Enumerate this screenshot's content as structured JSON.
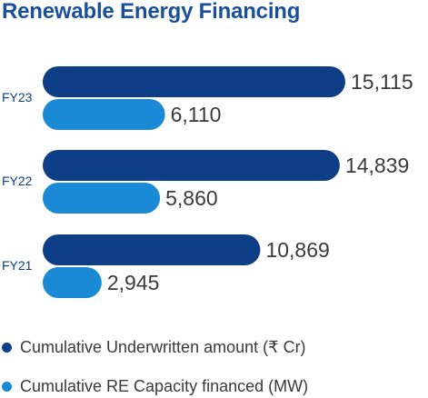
{
  "title": "Renewable Energy Financing",
  "colors": {
    "title": "#1a4f9c",
    "primary": "#0e3f86",
    "secondary": "#1b8ad6",
    "label_text": "#3a3a3a"
  },
  "chart_data": {
    "type": "bar",
    "orientation": "horizontal",
    "categories": [
      "FY23",
      "FY22",
      "FY21"
    ],
    "series": [
      {
        "name": "Cumulative Underwritten amount (₹ Cr)",
        "values": [
          15115,
          14839,
          10869
        ],
        "labels": [
          "15,115",
          "14,839",
          "10,869"
        ],
        "color": "#0e3f86"
      },
      {
        "name": "Cumulative RE Capacity financed (MW)",
        "values": [
          6110,
          5860,
          2945
        ],
        "labels": [
          "6,110",
          "5,860",
          "2,945"
        ],
        "color": "#1b8ad6"
      }
    ],
    "legend_position": "bottom",
    "grid": false
  }
}
